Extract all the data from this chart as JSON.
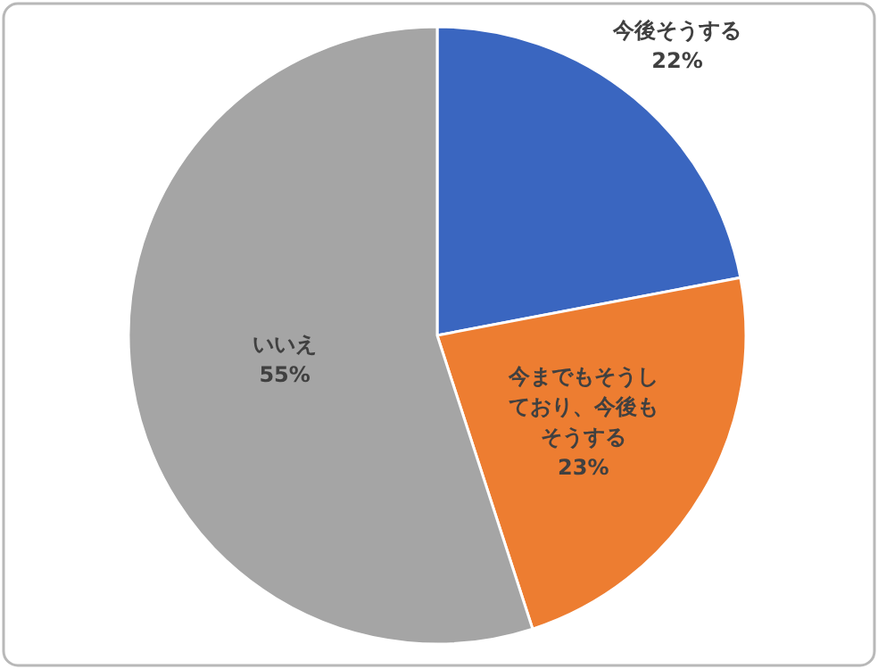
{
  "chart_data": {
    "type": "pie",
    "categories": [
      "今後そうする",
      "今までもそうしており、今後もそうする",
      "いいえ"
    ],
    "values": [
      22,
      23,
      55
    ],
    "value_labels": [
      "22%",
      "23%",
      "55%"
    ],
    "colors": [
      "#3a66c0",
      "#ed7d31",
      "#a5a5a5"
    ]
  }
}
